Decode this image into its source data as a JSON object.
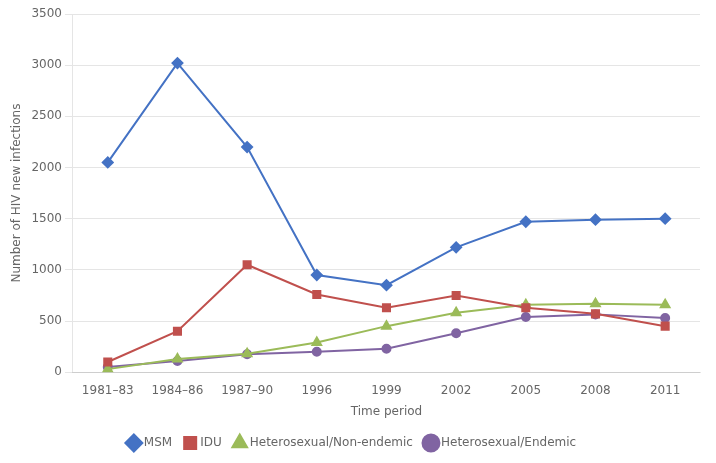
{
  "chart_data": {
    "type": "line",
    "xlabel": "Time period",
    "ylabel": "Number of HIV new infections",
    "categories": [
      "1981–83",
      "1984–86",
      "1987–90",
      "1996",
      "1999",
      "2002",
      "2005",
      "2008",
      "2011"
    ],
    "series": [
      {
        "name": "MSM",
        "color": "#4472C4",
        "marker": "diamond",
        "values": [
          2050,
          3020,
          2200,
          950,
          850,
          1220,
          1470,
          1490,
          1500
        ]
      },
      {
        "name": "IDU",
        "color": "#C0504D",
        "marker": "square",
        "values": [
          100,
          400,
          1050,
          760,
          630,
          750,
          630,
          570,
          450
        ]
      },
      {
        "name": "Heterosexual/Non-endemic",
        "color": "#9BBB59",
        "marker": "triangle",
        "values": [
          30,
          130,
          180,
          290,
          450,
          580,
          660,
          670,
          660
        ]
      },
      {
        "name": "Heterosexual/Endemic",
        "color": "#8064A2",
        "marker": "circle",
        "values": [
          50,
          110,
          175,
          200,
          230,
          380,
          540,
          565,
          530
        ]
      }
    ],
    "ylim": [
      0,
      3500
    ],
    "yticks": [
      0,
      500,
      1000,
      1500,
      2000,
      2500,
      3000,
      3500
    ],
    "grid": "y",
    "legend": "bottom"
  }
}
